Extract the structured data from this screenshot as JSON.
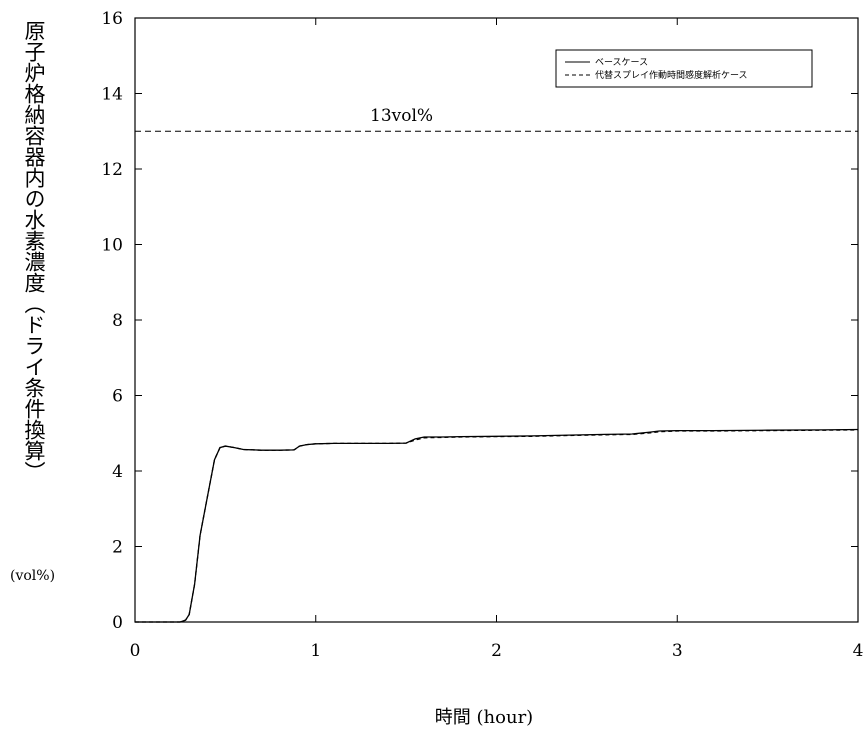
{
  "chart_data": {
    "type": "line",
    "xlabel": "時間 (hour)",
    "ylabel": "原子炉格納容器内の水素濃度（ドライ条件換算）",
    "yunit": "(vol%)",
    "xlim": [
      0,
      4
    ],
    "ylim": [
      0,
      16
    ],
    "x_ticks": [
      "0",
      "1",
      "2",
      "3",
      "4"
    ],
    "y_ticks": [
      "0",
      "2",
      "4",
      "6",
      "8",
      "10",
      "12",
      "14",
      "16"
    ],
    "grid": false,
    "legend_position": "top-right",
    "reference_line": {
      "value": 13,
      "label": "13vol%"
    },
    "series": [
      {
        "name": "ベースケース",
        "style": "solid",
        "x": [
          0,
          0.25,
          0.28,
          0.3,
          0.33,
          0.36,
          0.4,
          0.44,
          0.47,
          0.5,
          0.55,
          0.6,
          0.7,
          0.8,
          0.88,
          0.91,
          0.95,
          1.0,
          1.1,
          1.2,
          1.3,
          1.4,
          1.5,
          1.55,
          1.6,
          1.7,
          1.8,
          2.0,
          2.2,
          2.4,
          2.6,
          2.75,
          2.85,
          2.9,
          3.0,
          3.2,
          3.5,
          3.8,
          4.0
        ],
        "y": [
          0,
          0,
          0.05,
          0.2,
          1.0,
          2.3,
          3.3,
          4.3,
          4.62,
          4.66,
          4.62,
          4.57,
          4.55,
          4.55,
          4.56,
          4.66,
          4.7,
          4.72,
          4.73,
          4.73,
          4.73,
          4.73,
          4.74,
          4.85,
          4.9,
          4.9,
          4.91,
          4.92,
          4.93,
          4.95,
          4.97,
          4.98,
          5.03,
          5.06,
          5.07,
          5.07,
          5.08,
          5.09,
          5.1
        ]
      },
      {
        "name": "代替スプレイ作動時間感度解析ケース",
        "style": "dashed",
        "x": [
          0,
          0.25,
          0.28,
          0.3,
          0.33,
          0.36,
          0.4,
          0.44,
          0.47,
          0.5,
          0.55,
          0.6,
          0.7,
          0.8,
          0.88,
          0.91,
          0.95,
          1.0,
          1.1,
          1.2,
          1.3,
          1.4,
          1.5,
          1.55,
          1.6,
          1.7,
          1.8,
          2.0,
          2.2,
          2.4,
          2.6,
          2.75,
          2.85,
          2.9,
          3.0,
          3.2,
          3.5,
          3.8,
          4.0
        ],
        "y": [
          0,
          0,
          0.05,
          0.2,
          1.0,
          2.3,
          3.3,
          4.3,
          4.62,
          4.66,
          4.62,
          4.57,
          4.55,
          4.55,
          4.56,
          4.66,
          4.7,
          4.72,
          4.73,
          4.73,
          4.73,
          4.73,
          4.74,
          4.82,
          4.88,
          4.89,
          4.9,
          4.91,
          4.92,
          4.94,
          4.96,
          4.97,
          5.01,
          5.04,
          5.06,
          5.06,
          5.07,
          5.08,
          5.09
        ]
      }
    ]
  }
}
